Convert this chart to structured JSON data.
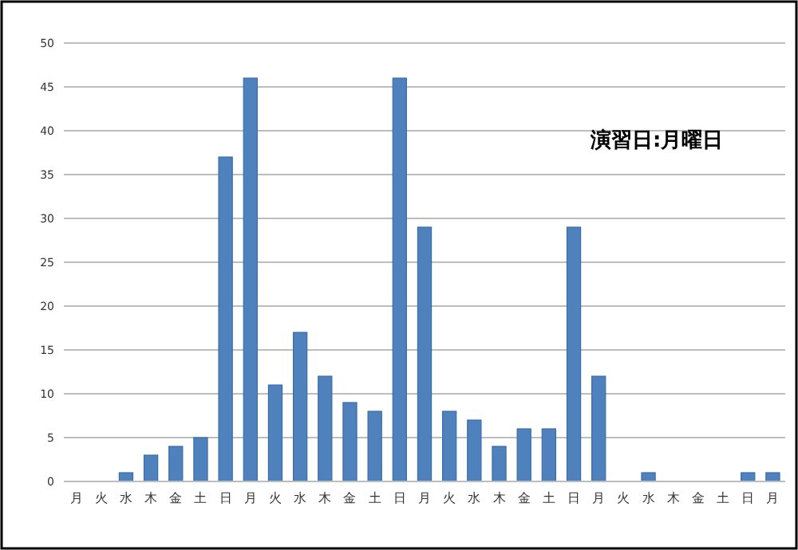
{
  "chart_data": {
    "type": "bar",
    "categories": [
      "月",
      "火",
      "水",
      "木",
      "金",
      "土",
      "日",
      "月",
      "火",
      "水",
      "木",
      "金",
      "土",
      "日",
      "月",
      "火",
      "水",
      "木",
      "金",
      "土",
      "日",
      "月",
      "火",
      "水",
      "木",
      "金",
      "土",
      "日",
      "月"
    ],
    "values": [
      0,
      0,
      1,
      3,
      4,
      5,
      37,
      46,
      11,
      17,
      12,
      9,
      8,
      46,
      29,
      8,
      7,
      4,
      6,
      6,
      29,
      12,
      0,
      1,
      0,
      0,
      0,
      1,
      1
    ],
    "color": "#4f81bd",
    "ylim": [
      0,
      50
    ],
    "yticks": [
      0,
      5,
      10,
      15,
      20,
      25,
      30,
      35,
      40,
      45,
      50
    ],
    "grid": "y",
    "annotations": [
      "演習日:月曜日"
    ]
  }
}
